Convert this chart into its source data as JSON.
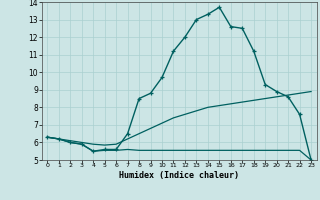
{
  "xlabel": "Humidex (Indice chaleur)",
  "xlim": [
    -0.5,
    23.5
  ],
  "ylim": [
    5,
    14
  ],
  "xticks": [
    0,
    1,
    2,
    3,
    4,
    5,
    6,
    7,
    8,
    9,
    10,
    11,
    12,
    13,
    14,
    15,
    16,
    17,
    18,
    19,
    20,
    21,
    22,
    23
  ],
  "yticks": [
    5,
    6,
    7,
    8,
    9,
    10,
    11,
    12,
    13,
    14
  ],
  "bg_color": "#cce5e5",
  "grid_color": "#aad0d0",
  "line_color": "#006060",
  "line1_x": [
    0,
    1,
    2,
    3,
    4,
    5,
    6,
    7,
    8,
    9,
    10,
    11,
    12,
    13,
    14,
    15,
    16,
    17,
    18,
    19,
    20,
    21,
    22,
    23
  ],
  "line1_y": [
    6.3,
    6.2,
    6.0,
    5.9,
    5.5,
    5.6,
    5.6,
    6.5,
    8.5,
    8.8,
    9.7,
    11.2,
    12.0,
    13.0,
    13.3,
    13.7,
    12.6,
    12.5,
    11.2,
    9.3,
    8.9,
    8.6,
    7.6,
    5.0
  ],
  "line2_x": [
    0,
    1,
    2,
    3,
    4,
    5,
    6,
    7,
    8,
    9,
    10,
    11,
    12,
    13,
    14,
    15,
    16,
    17,
    18,
    19,
    20,
    21,
    22,
    23
  ],
  "line2_y": [
    6.3,
    6.2,
    6.1,
    6.0,
    5.9,
    5.85,
    5.9,
    6.2,
    6.5,
    6.8,
    7.1,
    7.4,
    7.6,
    7.8,
    8.0,
    8.1,
    8.2,
    8.3,
    8.4,
    8.5,
    8.6,
    8.7,
    8.8,
    8.9
  ],
  "line3_x": [
    0,
    1,
    2,
    3,
    4,
    5,
    6,
    7,
    8,
    9,
    10,
    11,
    12,
    13,
    14,
    15,
    16,
    17,
    18,
    19,
    20,
    21,
    22,
    23
  ],
  "line3_y": [
    6.3,
    6.2,
    6.0,
    5.9,
    5.5,
    5.55,
    5.55,
    5.6,
    5.55,
    5.55,
    5.55,
    5.55,
    5.55,
    5.55,
    5.55,
    5.55,
    5.55,
    5.55,
    5.55,
    5.55,
    5.55,
    5.55,
    5.55,
    5.0
  ]
}
